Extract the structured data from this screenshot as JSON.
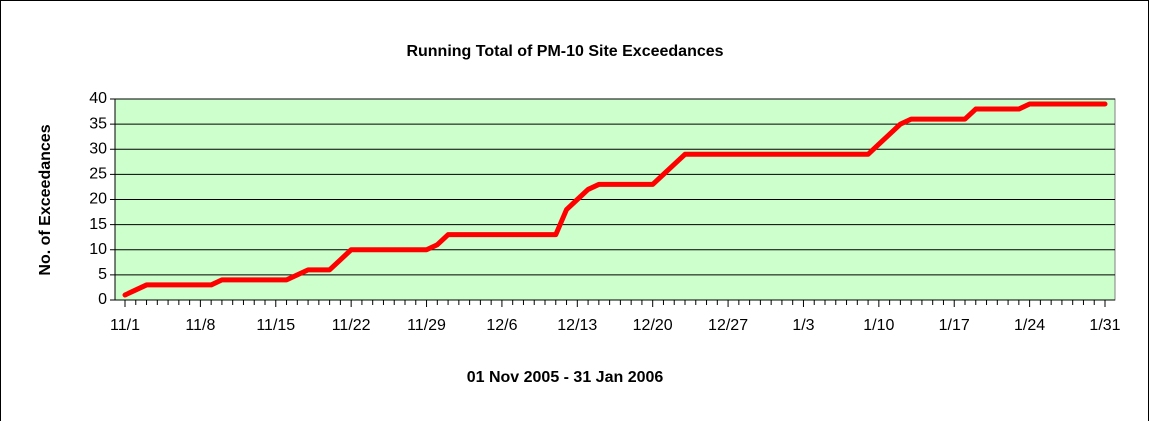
{
  "chart_data": {
    "type": "line",
    "title": "Running Total of PM-10 Site Exceedances",
    "x_label": "01 Nov 2005 - 31 Jan 2006",
    "y_label": "No. of Exceedances",
    "categories": [
      "11/1",
      null,
      null,
      null,
      null,
      null,
      null,
      "11/8",
      null,
      null,
      null,
      null,
      null,
      null,
      "11/15",
      null,
      null,
      null,
      null,
      null,
      null,
      "11/22",
      null,
      null,
      null,
      null,
      null,
      null,
      "11/29",
      null,
      null,
      null,
      null,
      null,
      null,
      "12/6",
      null,
      null,
      null,
      null,
      null,
      null,
      "12/13",
      null,
      null,
      null,
      null,
      null,
      null,
      "12/20",
      null,
      null,
      null,
      null,
      null,
      null,
      "12/27",
      null,
      null,
      null,
      null,
      null,
      null,
      "1/3",
      null,
      null,
      null,
      null,
      null,
      null,
      "1/10",
      null,
      null,
      null,
      null,
      null,
      null,
      "1/17",
      null,
      null,
      null,
      null,
      null,
      null,
      "1/24",
      null,
      null,
      null,
      null,
      null,
      null,
      "1/31"
    ],
    "series": [
      {
        "name": "Running Total",
        "color": "#ff0000",
        "values": [
          1,
          2,
          3,
          3,
          3,
          3,
          3,
          3,
          3,
          4,
          4,
          4,
          4,
          4,
          4,
          4,
          5,
          6,
          6,
          6,
          8,
          10,
          10,
          10,
          10,
          10,
          10,
          10,
          10,
          11,
          13,
          13,
          13,
          13,
          13,
          13,
          13,
          13,
          13,
          13,
          13,
          18,
          20,
          22,
          23,
          23,
          23,
          23,
          23,
          23,
          25,
          27,
          29,
          29,
          29,
          29,
          29,
          29,
          29,
          29,
          29,
          29,
          29,
          29,
          29,
          29,
          29,
          29,
          29,
          29,
          31,
          33,
          35,
          36,
          36,
          36,
          36,
          36,
          36,
          38,
          38,
          38,
          38,
          38,
          39,
          39,
          39,
          39,
          39,
          39,
          39,
          39
        ]
      }
    ],
    "ylim": [
      0,
      40
    ],
    "yticks": [
      0,
      5,
      10,
      15,
      20,
      25,
      30,
      35,
      40
    ],
    "grid": true,
    "plot_background": "#ccffcc"
  }
}
